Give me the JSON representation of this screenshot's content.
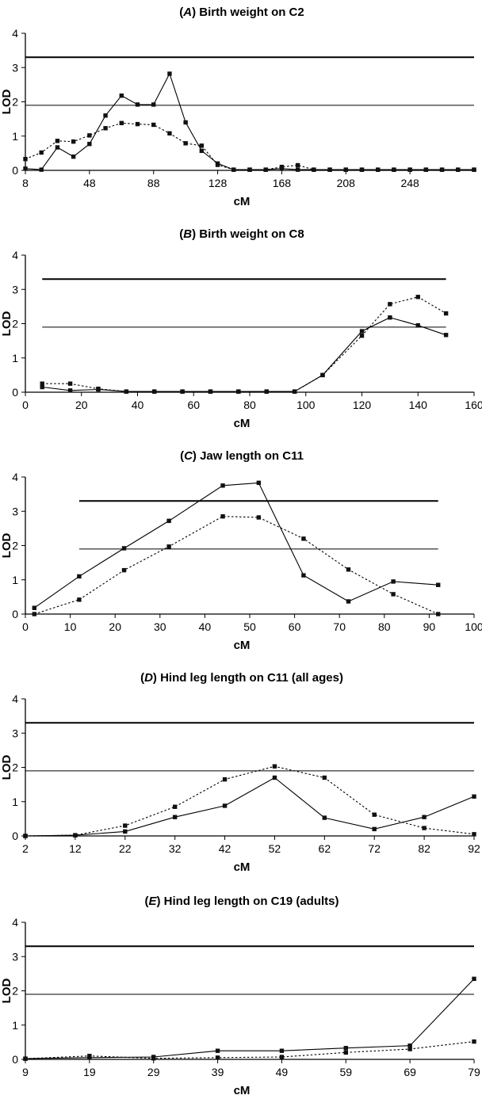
{
  "chart_data": [
    {
      "type": "line",
      "title_prefix": "(",
      "title_letter": "A",
      "title_text": ") Birth weight on C2",
      "xlabel": "cM",
      "ylabel": "LOD",
      "xlim": [
        8,
        288
      ],
      "ylim": [
        0,
        4
      ],
      "xticks": [
        8,
        48,
        88,
        128,
        168,
        208,
        248
      ],
      "yticks": [
        0,
        1,
        2,
        3,
        4
      ],
      "thresholds": [
        {
          "value": 3.3,
          "weight": "thick",
          "x_range": [
            8,
            288
          ]
        },
        {
          "value": 1.9,
          "weight": "thin",
          "x_range": [
            8,
            288
          ]
        }
      ],
      "series": [
        {
          "style": "solid",
          "x": [
            8,
            18,
            28,
            38,
            48,
            58,
            68,
            78,
            88,
            98,
            108,
            118,
            128,
            138,
            148,
            158,
            168,
            178,
            188,
            198,
            208,
            218,
            228,
            238,
            248,
            258,
            268,
            278,
            288
          ],
          "y": [
            0.05,
            0.02,
            0.67,
            0.4,
            0.77,
            1.6,
            2.18,
            1.92,
            1.92,
            2.82,
            1.4,
            0.57,
            0.2,
            0.02,
            0.02,
            0.02,
            0.05,
            0.02,
            0.02,
            0.02,
            0.02,
            0.02,
            0.02,
            0.02,
            0.02,
            0.02,
            0.02,
            0.02,
            0.02
          ]
        },
        {
          "style": "dotted",
          "x": [
            8,
            18,
            28,
            38,
            48,
            58,
            68,
            78,
            88,
            98,
            108,
            118,
            128,
            138,
            148,
            158,
            168,
            178,
            188,
            198,
            208,
            218,
            228,
            238,
            248,
            258,
            268,
            278,
            288
          ],
          "y": [
            0.33,
            0.52,
            0.86,
            0.84,
            1.02,
            1.23,
            1.38,
            1.35,
            1.33,
            1.08,
            0.79,
            0.72,
            0.16,
            0.02,
            0.02,
            0.02,
            0.1,
            0.15,
            0.02,
            0.02,
            0.02,
            0.02,
            0.02,
            0.02,
            0.02,
            0.02,
            0.02,
            0.02,
            0.02
          ]
        }
      ]
    },
    {
      "type": "line",
      "title_prefix": "(",
      "title_letter": "B",
      "title_text": ") Birth weight on C8",
      "xlabel": "cM",
      "ylabel": "LOD",
      "xlim": [
        0,
        160
      ],
      "ylim": [
        0,
        4
      ],
      "xticks": [
        0,
        20,
        40,
        60,
        80,
        100,
        120,
        140,
        160
      ],
      "yticks": [
        0,
        1,
        2,
        3,
        4
      ],
      "thresholds": [
        {
          "value": 3.3,
          "weight": "thick",
          "x_range": [
            6,
            150
          ]
        },
        {
          "value": 1.9,
          "weight": "thin",
          "x_range": [
            6,
            150
          ]
        }
      ],
      "series": [
        {
          "style": "solid",
          "x": [
            6,
            16,
            26,
            36,
            46,
            56,
            66,
            76,
            86,
            96,
            106,
            120,
            130,
            140,
            150
          ],
          "y": [
            0.15,
            0.05,
            0.08,
            0.02,
            0.02,
            0.02,
            0.02,
            0.02,
            0.02,
            0.02,
            0.5,
            1.78,
            2.18,
            1.95,
            1.67
          ]
        },
        {
          "style": "dotted",
          "x": [
            6,
            16,
            26,
            36,
            46,
            56,
            66,
            76,
            86,
            96,
            106,
            120,
            130,
            140,
            150
          ],
          "y": [
            0.25,
            0.25,
            0.1,
            0.02,
            0.02,
            0.02,
            0.02,
            0.02,
            0.02,
            0.02,
            0.5,
            1.65,
            2.57,
            2.78,
            2.3
          ]
        }
      ]
    },
    {
      "type": "line",
      "title_prefix": "(",
      "title_letter": "C",
      "title_text": ") Jaw length on C11",
      "xlabel": "cM",
      "ylabel": "LOD",
      "xlim": [
        0,
        100
      ],
      "ylim": [
        0,
        4
      ],
      "xticks": [
        0,
        10,
        20,
        30,
        40,
        50,
        60,
        70,
        80,
        90,
        100
      ],
      "yticks": [
        0,
        1,
        2,
        3,
        4
      ],
      "thresholds": [
        {
          "value": 3.3,
          "weight": "thick",
          "x_range": [
            12,
            92
          ]
        },
        {
          "value": 1.9,
          "weight": "thin",
          "x_range": [
            12,
            92
          ]
        }
      ],
      "series": [
        {
          "style": "solid",
          "x": [
            2,
            12,
            22,
            32,
            44,
            52,
            62,
            72,
            82,
            92
          ],
          "y": [
            0.18,
            1.1,
            1.92,
            2.72,
            3.75,
            3.83,
            1.13,
            0.37,
            0.95,
            0.85
          ]
        },
        {
          "style": "dotted",
          "x": [
            2,
            12,
            22,
            32,
            44,
            52,
            62,
            72,
            82,
            92
          ],
          "y": [
            0.0,
            0.42,
            1.28,
            1.97,
            2.85,
            2.82,
            2.2,
            1.3,
            0.58,
            0.0
          ]
        }
      ]
    },
    {
      "type": "line",
      "title_prefix": "(",
      "title_letter": "D",
      "title_text": ") Hind leg length on C11 (all ages)",
      "xlabel": "cM",
      "ylabel": "LOD",
      "xlim": [
        2,
        92
      ],
      "ylim": [
        0,
        4
      ],
      "xticks": [
        2,
        12,
        22,
        32,
        42,
        52,
        62,
        72,
        82,
        92
      ],
      "yticks": [
        0,
        1,
        2,
        3,
        4
      ],
      "thresholds": [
        {
          "value": 3.3,
          "weight": "thick",
          "x_range": [
            2,
            92
          ]
        },
        {
          "value": 1.9,
          "weight": "thin",
          "x_range": [
            2,
            92
          ]
        }
      ],
      "series": [
        {
          "style": "solid",
          "x": [
            2,
            12,
            22,
            32,
            42,
            52,
            62,
            72,
            82,
            92
          ],
          "y": [
            0.0,
            0.02,
            0.13,
            0.55,
            0.88,
            1.7,
            0.53,
            0.2,
            0.55,
            1.15
          ]
        },
        {
          "style": "dotted",
          "x": [
            2,
            12,
            22,
            32,
            42,
            52,
            62,
            72,
            82,
            92
          ],
          "y": [
            0.0,
            0.02,
            0.3,
            0.85,
            1.65,
            2.03,
            1.7,
            0.62,
            0.23,
            0.05
          ]
        }
      ]
    },
    {
      "type": "line",
      "title_prefix": "(",
      "title_letter": "E",
      "title_text": ") Hind leg length on C19 (adults)",
      "xlabel": "cM",
      "ylabel": "LOD",
      "xlim": [
        9,
        79
      ],
      "ylim": [
        0,
        4
      ],
      "xticks": [
        9,
        19,
        29,
        39,
        49,
        59,
        69,
        79
      ],
      "yticks": [
        0,
        1,
        2,
        3,
        4
      ],
      "thresholds": [
        {
          "value": 3.3,
          "weight": "thick",
          "x_range": [
            9,
            79
          ]
        },
        {
          "value": 1.9,
          "weight": "thin",
          "x_range": [
            9,
            79
          ]
        }
      ],
      "series": [
        {
          "style": "solid",
          "x": [
            9,
            19,
            29,
            39,
            49,
            59,
            69,
            79
          ],
          "y": [
            0.02,
            0.05,
            0.07,
            0.25,
            0.25,
            0.33,
            0.4,
            2.35
          ]
        },
        {
          "style": "dotted",
          "x": [
            9,
            19,
            29,
            39,
            49,
            59,
            69,
            79
          ],
          "y": [
            0.02,
            0.1,
            0.03,
            0.05,
            0.07,
            0.2,
            0.3,
            0.52
          ]
        }
      ]
    }
  ]
}
